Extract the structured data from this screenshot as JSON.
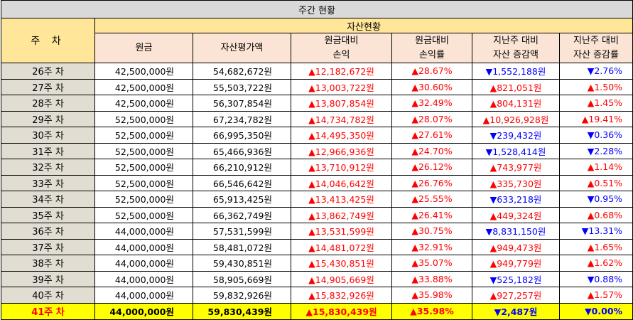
{
  "title": "주간 현황",
  "week_header": "주 차",
  "group_header": "자산현황",
  "columns": {
    "principal": "원금",
    "asset_value": "자산평가액",
    "pl_line1": "원금대비",
    "pl_line2": "손익",
    "rate_line1": "원금대비",
    "rate_line2": "손익률",
    "chg_line1": "지난주 대비",
    "chg_line2": "자산 증감액",
    "chgrate_line1": "지난주 대비",
    "chgrate_line2": "자산 증감률"
  },
  "colors": {
    "up": "#ff0000",
    "down": "#0000ff",
    "highlight": "#ffff00"
  },
  "rows": [
    {
      "week": "26주 차",
      "principal": "42,500,000원",
      "asset": "54,682,672원",
      "pl": "▲12,182,672원",
      "rate": "▲28.67%",
      "chg": "▼1,552,188원",
      "chg_dir": "down",
      "chgrate": "▼2.76%",
      "chgrate_dir": "down",
      "highlight": false
    },
    {
      "week": "27주 차",
      "principal": "42,500,000원",
      "asset": "55,503,722원",
      "pl": "▲13,003,722원",
      "rate": "▲30.60%",
      "chg": "▲821,051원",
      "chg_dir": "up",
      "chgrate": "▲1.50%",
      "chgrate_dir": "up",
      "highlight": false
    },
    {
      "week": "28주 차",
      "principal": "42,500,000원",
      "asset": "56,307,854원",
      "pl": "▲13,807,854원",
      "rate": "▲32.49%",
      "chg": "▲804,131원",
      "chg_dir": "up",
      "chgrate": "▲1.45%",
      "chgrate_dir": "up",
      "highlight": false
    },
    {
      "week": "29주 차",
      "principal": "52,500,000원",
      "asset": "67,234,782원",
      "pl": "▲14,734,782원",
      "rate": "▲28.07%",
      "chg": "▲10,926,928원",
      "chg_dir": "up",
      "chgrate": "▲19.41%",
      "chgrate_dir": "up",
      "highlight": false
    },
    {
      "week": "30주 차",
      "principal": "52,500,000원",
      "asset": "66,995,350원",
      "pl": "▲14,495,350원",
      "rate": "▲27.61%",
      "chg": "▼239,432원",
      "chg_dir": "down",
      "chgrate": "▼0.36%",
      "chgrate_dir": "down",
      "highlight": false
    },
    {
      "week": "31주 차",
      "principal": "52,500,000원",
      "asset": "65,466,936원",
      "pl": "▲12,966,936원",
      "rate": "▲24.70%",
      "chg": "▼1,528,414원",
      "chg_dir": "down",
      "chgrate": "▼2.28%",
      "chgrate_dir": "down",
      "highlight": false
    },
    {
      "week": "32주 차",
      "principal": "52,500,000원",
      "asset": "66,210,912원",
      "pl": "▲13,710,912원",
      "rate": "▲26.12%",
      "chg": "▲743,977원",
      "chg_dir": "up",
      "chgrate": "▲1.14%",
      "chgrate_dir": "up",
      "highlight": false
    },
    {
      "week": "33주 차",
      "principal": "52,500,000원",
      "asset": "66,546,642원",
      "pl": "▲14,046,642원",
      "rate": "▲26.76%",
      "chg": "▲335,730원",
      "chg_dir": "up",
      "chgrate": "▲0.51%",
      "chgrate_dir": "up",
      "highlight": false
    },
    {
      "week": "34주 차",
      "principal": "52,500,000원",
      "asset": "65,913,425원",
      "pl": "▲13,413,425원",
      "rate": "▲25.55%",
      "chg": "▼633,218원",
      "chg_dir": "down",
      "chgrate": "▼0.95%",
      "chgrate_dir": "down",
      "highlight": false
    },
    {
      "week": "35주 차",
      "principal": "52,500,000원",
      "asset": "66,362,749원",
      "pl": "▲13,862,749원",
      "rate": "▲26.41%",
      "chg": "▲449,324원",
      "chg_dir": "up",
      "chgrate": "▲0.68%",
      "chgrate_dir": "up",
      "highlight": false
    },
    {
      "week": "36주 차",
      "principal": "44,000,000원",
      "asset": "57,531,599원",
      "pl": "▲13,531,599원",
      "rate": "▲30.75%",
      "chg": "▼8,831,150원",
      "chg_dir": "down",
      "chgrate": "▼13.31%",
      "chgrate_dir": "down",
      "highlight": false
    },
    {
      "week": "37주 차",
      "principal": "44,000,000원",
      "asset": "58,481,072원",
      "pl": "▲14,481,072원",
      "rate": "▲32.91%",
      "chg": "▲949,473원",
      "chg_dir": "up",
      "chgrate": "▲1.65%",
      "chgrate_dir": "up",
      "highlight": false
    },
    {
      "week": "38주 차",
      "principal": "44,000,000원",
      "asset": "59,430,851원",
      "pl": "▲15,430,851원",
      "rate": "▲35.07%",
      "chg": "▲949,779원",
      "chg_dir": "up",
      "chgrate": "▲1.62%",
      "chgrate_dir": "up",
      "highlight": false
    },
    {
      "week": "39주 차",
      "principal": "44,000,000원",
      "asset": "58,905,669원",
      "pl": "▲14,905,669원",
      "rate": "▲33.88%",
      "chg": "▼525,182원",
      "chg_dir": "down",
      "chgrate": "▼0.88%",
      "chgrate_dir": "down",
      "highlight": false
    },
    {
      "week": "40주 차",
      "principal": "44,000,000원",
      "asset": "59,832,926원",
      "pl": "▲15,832,926원",
      "rate": "▲35.98%",
      "chg": "▲927,257원",
      "chg_dir": "up",
      "chgrate": "▲1.57%",
      "chgrate_dir": "up",
      "highlight": false
    },
    {
      "week": "41주 차",
      "principal": "44,000,000원",
      "asset": "59,830,439원",
      "pl": "▲15,830,439원",
      "rate": "▲35.98%",
      "chg": "▼2,487원",
      "chg_dir": "down",
      "chgrate": "▼0.00%",
      "chgrate_dir": "down",
      "highlight": true
    }
  ]
}
